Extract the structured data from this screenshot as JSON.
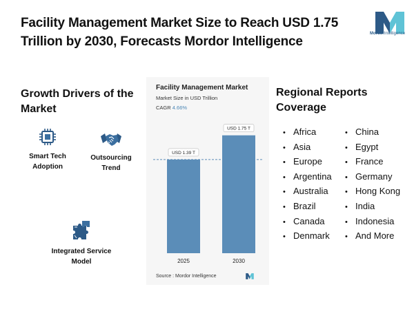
{
  "title": "Facility Management Market Size to Reach USD 1.75 Trillion by 2030, Forecasts Mordor Intelligence",
  "brand": {
    "name_part1": "Mordor",
    "name_part2": "Intelligence",
    "colors": {
      "dark": "#2d5a87",
      "light": "#5fc3d6"
    }
  },
  "drivers": {
    "heading": "Growth Drivers of the Market",
    "items": [
      {
        "label": "Smart Tech Adoption",
        "icon": "chip-icon"
      },
      {
        "label": "Outsourcing Trend",
        "icon": "handshake-icon"
      },
      {
        "label": "Integrated Service Model",
        "icon": "puzzle-icon"
      }
    ]
  },
  "chart_data": {
    "type": "bar",
    "title": "Facility Management Market",
    "subtitle": "Market Size in USD Trillion",
    "cagr_label": "CAGR",
    "cagr_value": "4.66%",
    "categories": [
      "2025",
      "2030"
    ],
    "values": [
      1.39,
      1.75
    ],
    "value_labels": [
      "USD 1.39 T",
      "USD 1.75 T"
    ],
    "ylim": [
      0,
      1.9
    ],
    "grid": false,
    "reference_line": "dashed line at 2025 value",
    "bar_color": "#5b8db8",
    "source": "Source : Mordor Intelligence"
  },
  "regions": {
    "heading": "Regional Reports Coverage",
    "col1": [
      "Africa",
      "Asia",
      "Europe",
      "Argentina",
      "Australia",
      "Brazil",
      "Canada",
      "Denmark"
    ],
    "col2": [
      "China",
      "Egypt",
      "France",
      "Germany",
      "Hong Kong",
      "India",
      "Indonesia",
      "And More"
    ]
  }
}
